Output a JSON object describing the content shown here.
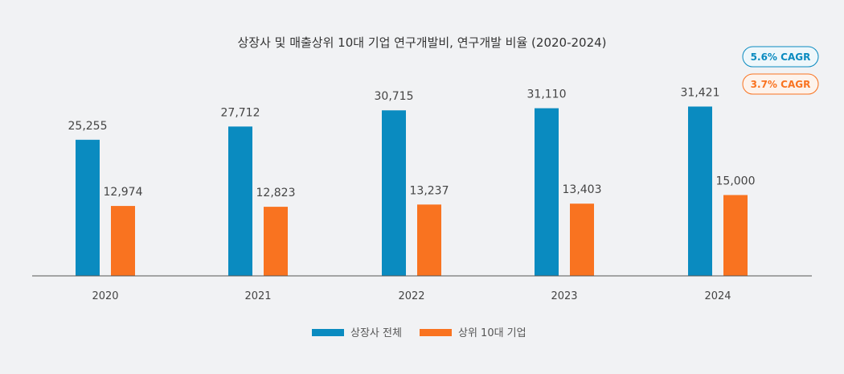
{
  "chart_data": {
    "type": "bar",
    "title": "상장사 및 매출상위 10대 기업 연구개발비, 연구개발 비율 (2020-2024)",
    "categories": [
      "2020",
      "2021",
      "2022",
      "2023",
      "2024"
    ],
    "series": [
      {
        "name": "상장사 전체",
        "values": [
          25255,
          27712,
          30715,
          31110,
          31421
        ],
        "labels": [
          "25,255",
          "27,712",
          "30,715",
          "31,110",
          "31,421"
        ],
        "color": "#0a8bc0"
      },
      {
        "name": "상위 10대 기업",
        "values": [
          12974,
          12823,
          13237,
          13403,
          15000
        ],
        "labels": [
          "12,974",
          "12,823",
          "13,237",
          "13,403",
          "15,000"
        ],
        "color": "#f97320"
      }
    ],
    "ylim": [
      0,
      40000
    ],
    "grid": false,
    "legend": "bottom-center",
    "annotations": [
      {
        "text": "5.6% CAGR",
        "color": "#0a8bc0"
      },
      {
        "text": "3.7% CAGR",
        "color": "#f97320"
      }
    ]
  }
}
